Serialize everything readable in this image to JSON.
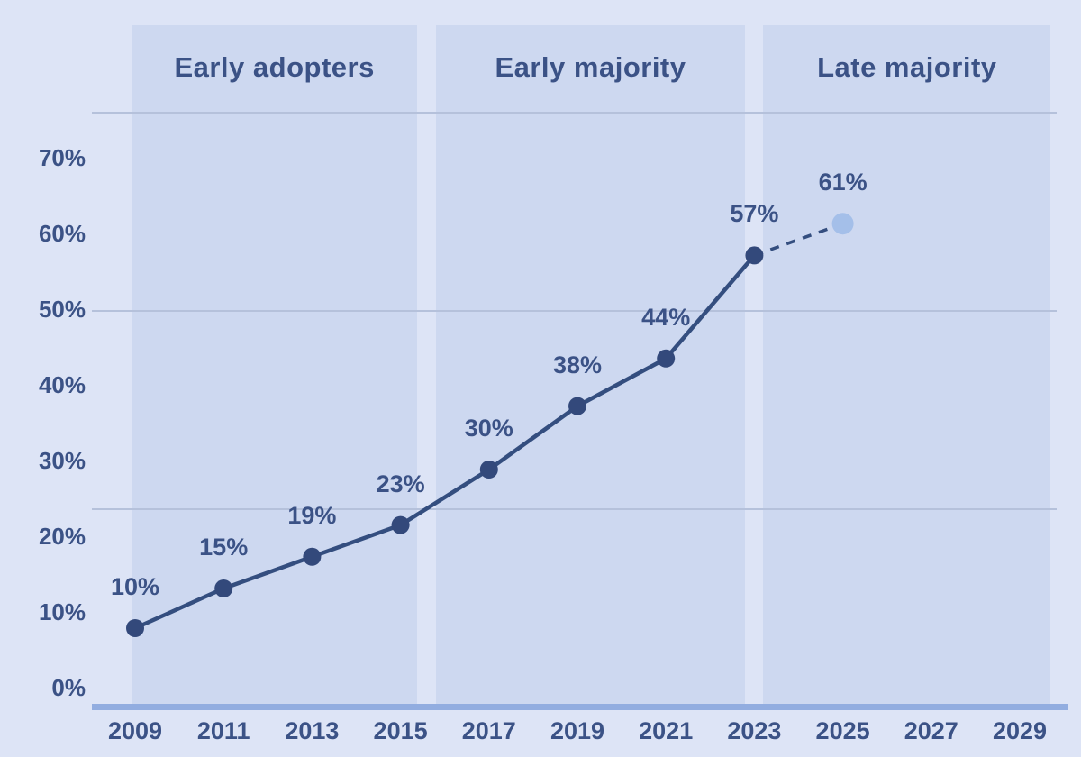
{
  "chart_data": {
    "type": "line",
    "title": "",
    "xlabel": "",
    "ylabel": "",
    "x_range": [
      2009,
      2029
    ],
    "y_axis": {
      "unit": "%",
      "ticks": [
        {
          "value": 0,
          "label": "0%"
        },
        {
          "value": 10,
          "label": "10%"
        },
        {
          "value": 20,
          "label": "20%"
        },
        {
          "value": 30,
          "label": "30%"
        },
        {
          "value": 40,
          "label": "40%"
        },
        {
          "value": 50,
          "label": "50%"
        },
        {
          "value": 60,
          "label": "60%"
        },
        {
          "value": 70,
          "label": "70%"
        }
      ],
      "gridline_values": [
        75,
        50,
        25
      ],
      "baseline_value": 0
    },
    "x_ticks": [
      {
        "year": 2009,
        "label": "2009"
      },
      {
        "year": 2011,
        "label": "2011"
      },
      {
        "year": 2013,
        "label": "2013"
      },
      {
        "year": 2015,
        "label": "2015"
      },
      {
        "year": 2017,
        "label": "2017"
      },
      {
        "year": 2019,
        "label": "2019"
      },
      {
        "year": 2021,
        "label": "2021"
      },
      {
        "year": 2023,
        "label": "2023"
      },
      {
        "year": 2025,
        "label": "2025"
      },
      {
        "year": 2027,
        "label": "2027"
      },
      {
        "year": 2029,
        "label": "2029"
      }
    ],
    "phases": [
      {
        "label": "Early adopters",
        "from_year": 2008.92,
        "to_year": 2015.38
      },
      {
        "label": "Early majority",
        "from_year": 2015.8,
        "to_year": 2022.79
      },
      {
        "label": "Late majority",
        "from_year": 2023.2,
        "to_year": 2029.7
      }
    ],
    "points": [
      {
        "year": 2009,
        "value": 10,
        "label": "10%",
        "projected": false
      },
      {
        "year": 2011,
        "value": 15,
        "label": "15%",
        "projected": false
      },
      {
        "year": 2013,
        "value": 19,
        "label": "19%",
        "projected": false
      },
      {
        "year": 2015,
        "value": 23,
        "label": "23%",
        "projected": false
      },
      {
        "year": 2017,
        "value": 30,
        "label": "30%",
        "projected": false
      },
      {
        "year": 2019,
        "value": 38,
        "label": "38%",
        "projected": false
      },
      {
        "year": 2021,
        "value": 44,
        "label": "44%",
        "projected": false
      },
      {
        "year": 2023,
        "value": 57,
        "label": "57%",
        "projected": false
      },
      {
        "year": 2025,
        "value": 61,
        "label": "61%",
        "projected": true
      }
    ],
    "legend_position": "none",
    "grid": "horizontal-partial"
  },
  "colors": {
    "background": "#dde4f6",
    "band": "#cdd8f0",
    "navy_text": "#3b5286",
    "line": "#344e7f",
    "point": "#33497b",
    "projected_point": "#a4bfe9",
    "gridline": "#b5c1db",
    "axis_line": "#92ade0"
  }
}
